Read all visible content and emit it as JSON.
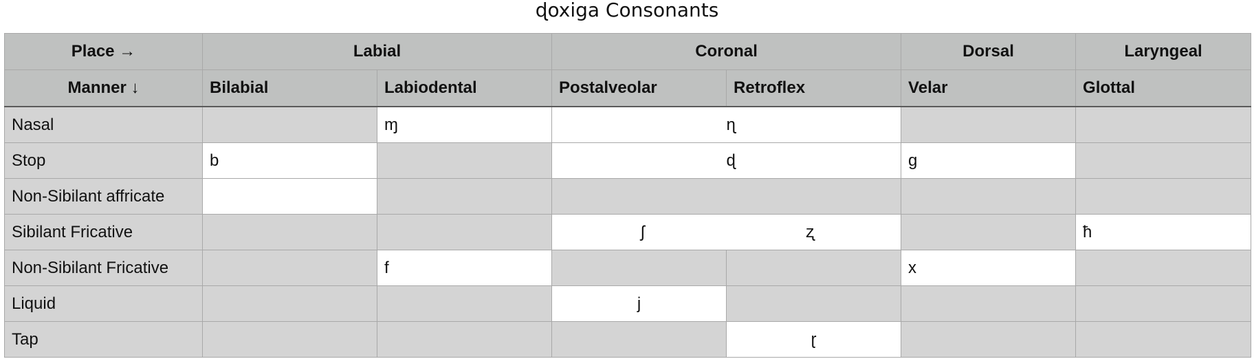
{
  "title": "ɖoxiga Consonants",
  "header": {
    "place_label": "Place →",
    "manner_label": "Manner ↓",
    "groups": [
      "Labial",
      "Coronal",
      "Dorsal",
      "Laryngeal"
    ],
    "columns": [
      "Bilabial",
      "Labiodental",
      "Postalveolar",
      "Retroflex",
      "Velar",
      "Glottal"
    ]
  },
  "rows": [
    {
      "label": "Nasal",
      "labiodental": "ɱ",
      "coronal_merged": "ɳ"
    },
    {
      "label": "Stop",
      "bilabial": "b",
      "coronal_merged": "ɖ",
      "velar": "g"
    },
    {
      "label": "Non-Sibilant affricate"
    },
    {
      "label": "Sibilant Fricative",
      "postalveolar": "ʃ",
      "retroflex": "ʐ",
      "glottal": "ħ"
    },
    {
      "label": "Non-Sibilant Fricative",
      "labiodental": "f",
      "velar": "x"
    },
    {
      "label": "Liquid",
      "postalveolar": "j"
    },
    {
      "label": "Tap",
      "retroflex": "ɽ"
    }
  ],
  "colors": {
    "header_bg": "#bfc1c0",
    "empty_cell_bg": "#d4d4d4",
    "filled_cell_bg": "#ffffff",
    "grid_line": "#a8a8a8"
  }
}
